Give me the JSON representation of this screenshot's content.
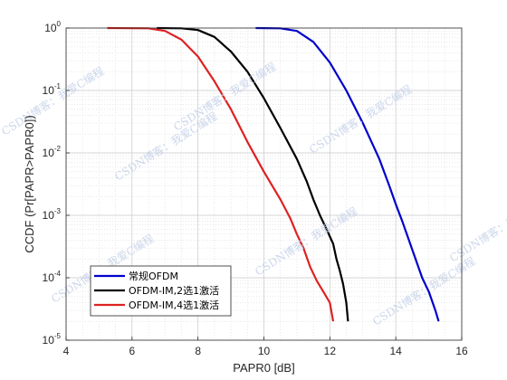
{
  "chart_data": {
    "type": "line",
    "title": "",
    "xlabel": "PAPR0 [dB]",
    "ylabel": "CCDF (Pr[PAPR>PAPR0])",
    "xlim": [
      4,
      16
    ],
    "ylim": [
      1e-05,
      1
    ],
    "yscale": "log",
    "grid": true,
    "minor_grid": true,
    "legend_position": "bottom-left",
    "x_ticks": [
      "4",
      "6",
      "8",
      "10",
      "12",
      "14",
      "16"
    ],
    "y_ticks": [
      {
        "base": "10",
        "exp": "0",
        "value": 1
      },
      {
        "base": "10",
        "exp": "-1",
        "value": 0.1
      },
      {
        "base": "10",
        "exp": "-2",
        "value": 0.01
      },
      {
        "base": "10",
        "exp": "-3",
        "value": 0.001
      },
      {
        "base": "10",
        "exp": "-4",
        "value": 0.0001
      },
      {
        "base": "10",
        "exp": "-5",
        "value": 1e-05
      }
    ],
    "series": [
      {
        "name": "常规OFDM",
        "color": "#0000cc",
        "points": [
          [
            9.75,
            1
          ],
          [
            10.5,
            0.99
          ],
          [
            11.0,
            0.9
          ],
          [
            11.5,
            0.6
          ],
          [
            12.0,
            0.28
          ],
          [
            12.5,
            0.1
          ],
          [
            13.0,
            0.03
          ],
          [
            13.5,
            0.008
          ],
          [
            13.8,
            0.003
          ],
          [
            14.0,
            0.0015
          ],
          [
            14.2,
            0.0008
          ],
          [
            14.4,
            0.0004
          ],
          [
            14.6,
            0.0002
          ],
          [
            14.8,
            0.0001
          ],
          [
            15.0,
            6e-05
          ],
          [
            15.2,
            3e-05
          ],
          [
            15.3,
            2e-05
          ]
        ]
      },
      {
        "name": "OFDM-IM,2选1激活",
        "color": "#000000",
        "points": [
          [
            6.75,
            1
          ],
          [
            7.5,
            0.99
          ],
          [
            8.0,
            0.93
          ],
          [
            8.5,
            0.72
          ],
          [
            9.0,
            0.42
          ],
          [
            9.5,
            0.2
          ],
          [
            10.0,
            0.075
          ],
          [
            10.5,
            0.025
          ],
          [
            11.0,
            0.008
          ],
          [
            11.3,
            0.0035
          ],
          [
            11.5,
            0.0018
          ],
          [
            11.7,
            0.001
          ],
          [
            11.9,
            0.0006
          ],
          [
            12.1,
            0.00035
          ],
          [
            12.2,
            0.0002
          ],
          [
            12.3,
            0.00013
          ],
          [
            12.4,
            8e-05
          ],
          [
            12.5,
            4e-05
          ],
          [
            12.55,
            2e-05
          ]
        ]
      },
      {
        "name": "OFDM-IM,4选1激活",
        "color": "#dd2222",
        "points": [
          [
            5.25,
            1
          ],
          [
            6.5,
            0.99
          ],
          [
            7.0,
            0.9
          ],
          [
            7.5,
            0.65
          ],
          [
            8.0,
            0.35
          ],
          [
            8.5,
            0.14
          ],
          [
            9.0,
            0.05
          ],
          [
            9.5,
            0.015
          ],
          [
            10.0,
            0.005
          ],
          [
            10.5,
            0.0018
          ],
          [
            10.8,
            0.0009
          ],
          [
            11.0,
            0.0005
          ],
          [
            11.2,
            0.0003
          ],
          [
            11.4,
            0.00015
          ],
          [
            11.6,
            9e-05
          ],
          [
            11.8,
            6e-05
          ],
          [
            12.0,
            4e-05
          ],
          [
            12.1,
            2e-05
          ]
        ]
      }
    ],
    "watermark": "CSDN博客：我爱C编程"
  }
}
